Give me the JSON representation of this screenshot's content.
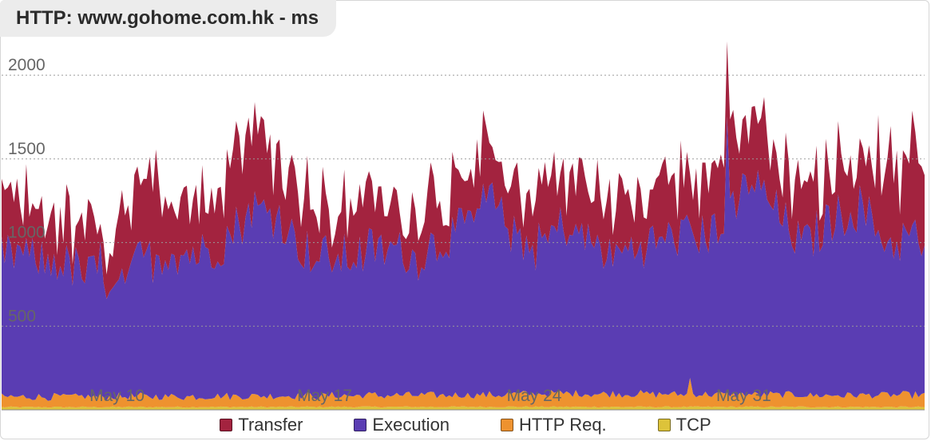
{
  "chart_data": {
    "type": "area",
    "stacked": true,
    "title": "HTTP: www.gohome.com.hk - ms",
    "xlabel": "",
    "ylabel": "",
    "ylim": [
      0,
      2230
    ],
    "yticks": [
      500,
      1000,
      1500,
      2000
    ],
    "xticks": [
      "May 10",
      "May 17",
      "May 24",
      "May 31"
    ],
    "grid": true,
    "legend_position": "bottom",
    "series_order_bottom_to_top": [
      "TCP",
      "HTTP Req.",
      "Execution",
      "Transfer"
    ],
    "series": [
      {
        "name": "Transfer",
        "color": "#a3233f",
        "anchors": [
          [
            0,
            300
          ],
          [
            0.02,
            320
          ],
          [
            0.05,
            300
          ],
          [
            0.08,
            270
          ],
          [
            0.11,
            250
          ],
          [
            0.15,
            350
          ],
          [
            0.19,
            380
          ],
          [
            0.22,
            320
          ],
          [
            0.25,
            420
          ],
          [
            0.28,
            430
          ],
          [
            0.31,
            300
          ],
          [
            0.34,
            300
          ],
          [
            0.37,
            290
          ],
          [
            0.4,
            280
          ],
          [
            0.43,
            260
          ],
          [
            0.46,
            280
          ],
          [
            0.49,
            250
          ],
          [
            0.52,
            310
          ],
          [
            0.55,
            320
          ],
          [
            0.58,
            300
          ],
          [
            0.61,
            320
          ],
          [
            0.64,
            300
          ],
          [
            0.67,
            310
          ],
          [
            0.7,
            320
          ],
          [
            0.73,
            330
          ],
          [
            0.76,
            360
          ],
          [
            0.79,
            340
          ],
          [
            0.82,
            380
          ],
          [
            0.85,
            300
          ],
          [
            0.88,
            330
          ],
          [
            0.91,
            320
          ],
          [
            0.94,
            330
          ],
          [
            0.97,
            420
          ],
          [
            1.0,
            430
          ]
        ]
      },
      {
        "name": "Execution",
        "color": "#5a3db3",
        "anchors": [
          [
            0,
            830
          ],
          [
            0.02,
            860
          ],
          [
            0.04,
            820
          ],
          [
            0.06,
            800
          ],
          [
            0.09,
            730
          ],
          [
            0.12,
            720
          ],
          [
            0.15,
            800
          ],
          [
            0.18,
            870
          ],
          [
            0.21,
            860
          ],
          [
            0.24,
            920
          ],
          [
            0.27,
            1120
          ],
          [
            0.3,
            1090
          ],
          [
            0.33,
            850
          ],
          [
            0.36,
            810
          ],
          [
            0.39,
            850
          ],
          [
            0.42,
            880
          ],
          [
            0.45,
            820
          ],
          [
            0.48,
            940
          ],
          [
            0.51,
            1040
          ],
          [
            0.53,
            1180
          ],
          [
            0.56,
            900
          ],
          [
            0.58,
            880
          ],
          [
            0.61,
            1000
          ],
          [
            0.64,
            910
          ],
          [
            0.66,
            820
          ],
          [
            0.68,
            880
          ],
          [
            0.7,
            890
          ],
          [
            0.73,
            950
          ],
          [
            0.76,
            950
          ],
          [
            0.79,
            1060
          ],
          [
            0.81,
            1290
          ],
          [
            0.83,
            1160
          ],
          [
            0.85,
            1000
          ],
          [
            0.87,
            900
          ],
          [
            0.9,
            1060
          ],
          [
            0.93,
            1130
          ],
          [
            0.96,
            900
          ],
          [
            1.0,
            950
          ]
        ]
      },
      {
        "name": "HTTP Req.",
        "color": "#ee922f",
        "anchors": [
          [
            0,
            60
          ],
          [
            0.25,
            65
          ],
          [
            0.5,
            70
          ],
          [
            0.6,
            80
          ],
          [
            0.75,
            75
          ],
          [
            0.9,
            70
          ],
          [
            1.0,
            72
          ]
        ]
      },
      {
        "name": "TCP",
        "color": "#ddc33a",
        "anchors": [
          [
            0,
            16
          ],
          [
            0.5,
            18
          ],
          [
            1.0,
            17
          ]
        ]
      }
    ],
    "points_per_series": 300
  }
}
